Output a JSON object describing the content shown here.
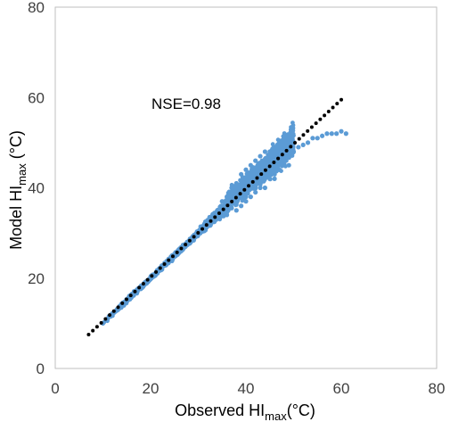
{
  "chart_data": {
    "type": "scatter",
    "xlabel": {
      "main": "Observed HI",
      "sub": "max",
      "unit": "(°C)"
    },
    "ylabel": {
      "main": "Model HI",
      "sub": "max",
      "unit": " (°C)"
    },
    "xlim": [
      0,
      80
    ],
    "ylim": [
      0,
      80
    ],
    "xticks": [
      "0",
      "20",
      "40",
      "60",
      "80"
    ],
    "yticks": [
      "0",
      "20",
      "40",
      "60",
      "80"
    ],
    "grid": false,
    "annotation": "NSE=0.98",
    "colors": {
      "points": "#5B9BD5",
      "fit_line": "#000000",
      "frame": "#BFBFBF"
    },
    "series": [
      {
        "kind": "points",
        "x": [
          10,
          11,
          12,
          13,
          14,
          15,
          16,
          17,
          18,
          19,
          20,
          21,
          22,
          23,
          24,
          25,
          26,
          27,
          27.5,
          28,
          28.5,
          29,
          29.5,
          30,
          30.5,
          31,
          31.5,
          32,
          32.5,
          33,
          33.5,
          34,
          34.5,
          35,
          35.5,
          36,
          36.5,
          37,
          37.5,
          38,
          38.5,
          39,
          39.5,
          40,
          40.5,
          41,
          41.5,
          42,
          42.5,
          43,
          43.5,
          44,
          44.5,
          45,
          45.5,
          46,
          46.5,
          47,
          48,
          49,
          50,
          51,
          52,
          53,
          54,
          55,
          56,
          57,
          58,
          59,
          60,
          61,
          35,
          36,
          37,
          38,
          39,
          40,
          41,
          42,
          43,
          44,
          45,
          46,
          47,
          48,
          38,
          40,
          42,
          44,
          46,
          36,
          39,
          41,
          43,
          45,
          47,
          49,
          34,
          37,
          40,
          42,
          44,
          46,
          48
        ],
        "y": [
          10,
          11,
          12,
          13,
          14,
          15,
          16,
          17,
          18,
          19,
          20,
          21,
          22,
          23,
          24,
          25,
          26,
          27,
          27.5,
          28,
          28.5,
          29,
          29.5,
          30,
          30.5,
          31,
          31.5,
          32,
          32.5,
          33,
          33.5,
          34,
          34.5,
          35,
          35.5,
          36,
          36.5,
          37,
          37.5,
          38,
          38.5,
          39,
          39.5,
          40,
          40.5,
          41,
          41.5,
          42,
          42.5,
          43,
          43.5,
          44,
          44.5,
          45,
          45.5,
          46,
          46.5,
          47,
          47.5,
          48,
          48,
          49,
          49.5,
          50,
          51,
          51,
          51.5,
          52,
          52,
          52,
          52.5,
          52,
          37,
          38,
          40,
          41,
          43,
          44,
          45,
          46,
          47,
          48,
          48,
          49,
          50,
          51,
          35,
          37,
          39,
          40,
          42,
          34,
          36,
          38,
          40,
          42,
          44,
          45,
          35,
          35.5,
          38,
          40,
          42,
          43,
          46
        ]
      },
      {
        "kind": "line",
        "style": "dotted",
        "x": [
          7,
          60
        ],
        "y": [
          7.5,
          59.5
        ]
      }
    ]
  }
}
